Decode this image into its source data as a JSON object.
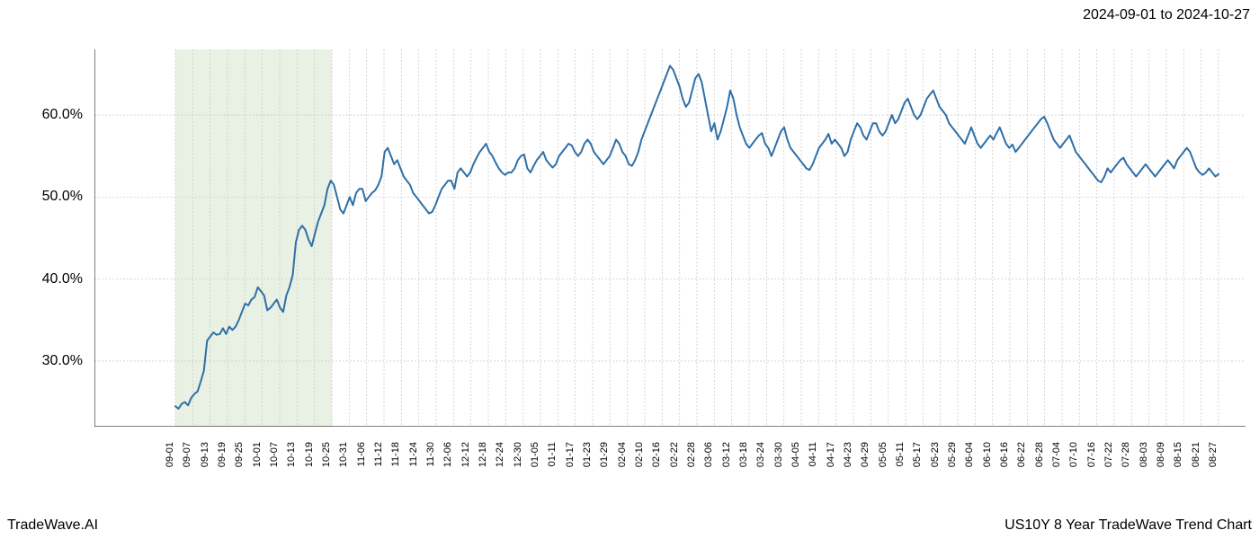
{
  "header": {
    "date_range": "2024-09-01 to 2024-10-27"
  },
  "footer": {
    "left": "TradeWave.AI",
    "right": "US10Y 8 Year TradeWave Trend Chart"
  },
  "chart": {
    "type": "line",
    "background_color": "#ffffff",
    "grid_color": "#cccccc",
    "grid_dash": "2,2",
    "line_color": "#2f6fa7",
    "line_width": 2,
    "highlight_fill": "#d8e8d0",
    "highlight_opacity": 0.6,
    "highlight_start_index": 0,
    "highlight_end_index": 9,
    "ylim": [
      22,
      68
    ],
    "ytick_values": [
      30,
      40,
      50,
      60
    ],
    "ytick_labels": [
      "30.0%",
      "40.0%",
      "50.0%",
      "60.0%"
    ],
    "x_labels": [
      "09-01",
      "09-07",
      "09-13",
      "09-19",
      "09-25",
      "10-01",
      "10-07",
      "10-13",
      "10-19",
      "10-25",
      "10-31",
      "11-06",
      "11-12",
      "11-18",
      "11-24",
      "11-30",
      "12-06",
      "12-12",
      "12-18",
      "12-24",
      "12-30",
      "01-05",
      "01-11",
      "01-17",
      "01-23",
      "01-29",
      "02-04",
      "02-10",
      "02-16",
      "02-22",
      "02-28",
      "03-06",
      "03-12",
      "03-18",
      "03-24",
      "03-30",
      "04-05",
      "04-11",
      "04-17",
      "04-23",
      "04-29",
      "05-05",
      "05-11",
      "05-17",
      "05-23",
      "05-29",
      "06-04",
      "06-10",
      "06-16",
      "06-22",
      "06-28",
      "07-04",
      "07-10",
      "07-16",
      "07-22",
      "07-28",
      "08-03",
      "08-09",
      "08-15",
      "08-21",
      "08-27"
    ],
    "axis_border_color": "#000000",
    "axis_label_fontsize": 11,
    "y_label_fontsize": 16,
    "data": [
      24.5,
      24.2,
      24.8,
      25.0,
      24.6,
      25.5,
      26.0,
      26.3,
      27.5,
      28.8,
      32.5,
      33.0,
      33.5,
      33.2,
      33.3,
      34.0,
      33.3,
      34.2,
      33.8,
      34.2,
      35.0,
      36.0,
      37.0,
      36.8,
      37.5,
      37.8,
      39.0,
      38.5,
      38.0,
      36.2,
      36.5,
      37.0,
      37.5,
      36.5,
      36.0,
      38.0,
      39.0,
      40.5,
      44.5,
      46.0,
      46.5,
      46.0,
      44.8,
      44.0,
      45.5,
      47.0,
      48.0,
      49.0,
      51.0,
      52.0,
      51.5,
      50.0,
      48.5,
      48.0,
      49.0,
      50.0,
      49.0,
      50.5,
      51.0,
      51.0,
      49.5,
      50.0,
      50.5,
      50.8,
      51.5,
      52.5,
      55.5,
      56.0,
      55.0,
      54.0,
      54.5,
      53.5,
      52.5,
      52.0,
      51.5,
      50.5,
      50.0,
      49.5,
      49.0,
      48.5,
      48.0,
      48.2,
      49.0,
      50.0,
      51.0,
      51.5,
      52.0,
      52.0,
      51.0,
      53.0,
      53.5,
      53.0,
      52.5,
      53.0,
      54.0,
      54.8,
      55.5,
      56.0,
      56.5,
      55.5,
      55.0,
      54.2,
      53.5,
      53.0,
      52.7,
      53.0,
      53.0,
      53.5,
      54.5,
      55.0,
      55.2,
      53.5,
      53.0,
      53.8,
      54.5,
      55.0,
      55.5,
      54.5,
      54.0,
      53.6,
      54.0,
      55.0,
      55.5,
      56.0,
      56.5,
      56.3,
      55.5,
      55.0,
      55.5,
      56.5,
      57.0,
      56.5,
      55.5,
      55.0,
      54.5,
      54.0,
      54.5,
      55.0,
      56.0,
      57.0,
      56.5,
      55.5,
      55.0,
      54.0,
      53.8,
      54.5,
      55.5,
      57.0,
      58.0,
      59.0,
      60.0,
      61.0,
      62.0,
      63.0,
      64.0,
      65.0,
      66.0,
      65.5,
      64.5,
      63.5,
      62.0,
      61.0,
      61.5,
      63.0,
      64.5,
      65.0,
      64.0,
      62.0,
      60.0,
      58.0,
      59.0,
      57.0,
      58.0,
      59.5,
      61.0,
      63.0,
      62.0,
      60.0,
      58.5,
      57.5,
      56.5,
      56.0,
      56.5,
      57.0,
      57.5,
      57.8,
      56.5,
      56.0,
      55.0,
      56.0,
      57.0,
      58.0,
      58.5,
      57.0,
      56.0,
      55.5,
      55.0,
      54.5,
      54.0,
      53.5,
      53.3,
      54.0,
      55.0,
      56.0,
      56.5,
      57.0,
      57.7,
      56.5,
      57.0,
      56.5,
      56.0,
      55.0,
      55.5,
      57.0,
      58.0,
      59.0,
      58.5,
      57.5,
      57.0,
      58.0,
      59.0,
      59.0,
      58.0,
      57.5,
      58.0,
      59.0,
      60.0,
      59.0,
      59.5,
      60.5,
      61.5,
      62.0,
      61.0,
      60.0,
      59.5,
      60.0,
      61.0,
      62.0,
      62.5,
      63.0,
      62.0,
      61.0,
      60.5,
      60.0,
      59.0,
      58.5,
      58.0,
      57.5,
      57.0,
      56.5,
      57.5,
      58.5,
      57.5,
      56.5,
      56.0,
      56.5,
      57.0,
      57.5,
      57.0,
      57.8,
      58.5,
      57.5,
      56.5,
      56.0,
      56.4,
      55.5,
      56.0,
      56.5,
      57.0,
      57.5,
      58.0,
      58.5,
      59.0,
      59.5,
      59.8,
      59.0,
      58.0,
      57.0,
      56.5,
      56.0,
      56.5,
      57.0,
      57.5,
      56.5,
      55.5,
      55.0,
      54.5,
      54.0,
      53.5,
      53.0,
      52.5,
      52.0,
      51.8,
      52.5,
      53.5,
      53.0,
      53.5,
      54.0,
      54.5,
      54.8,
      54.0,
      53.5,
      53.0,
      52.5,
      53.0,
      53.5,
      54.0,
      53.5,
      53.0,
      52.5,
      53.0,
      53.5,
      54.0,
      54.5,
      54.0,
      53.5,
      54.5,
      55.0,
      55.5,
      56.0,
      55.5,
      54.5,
      53.5,
      53.0,
      52.7,
      53.0,
      53.5,
      53.0,
      52.5,
      52.8
    ]
  }
}
